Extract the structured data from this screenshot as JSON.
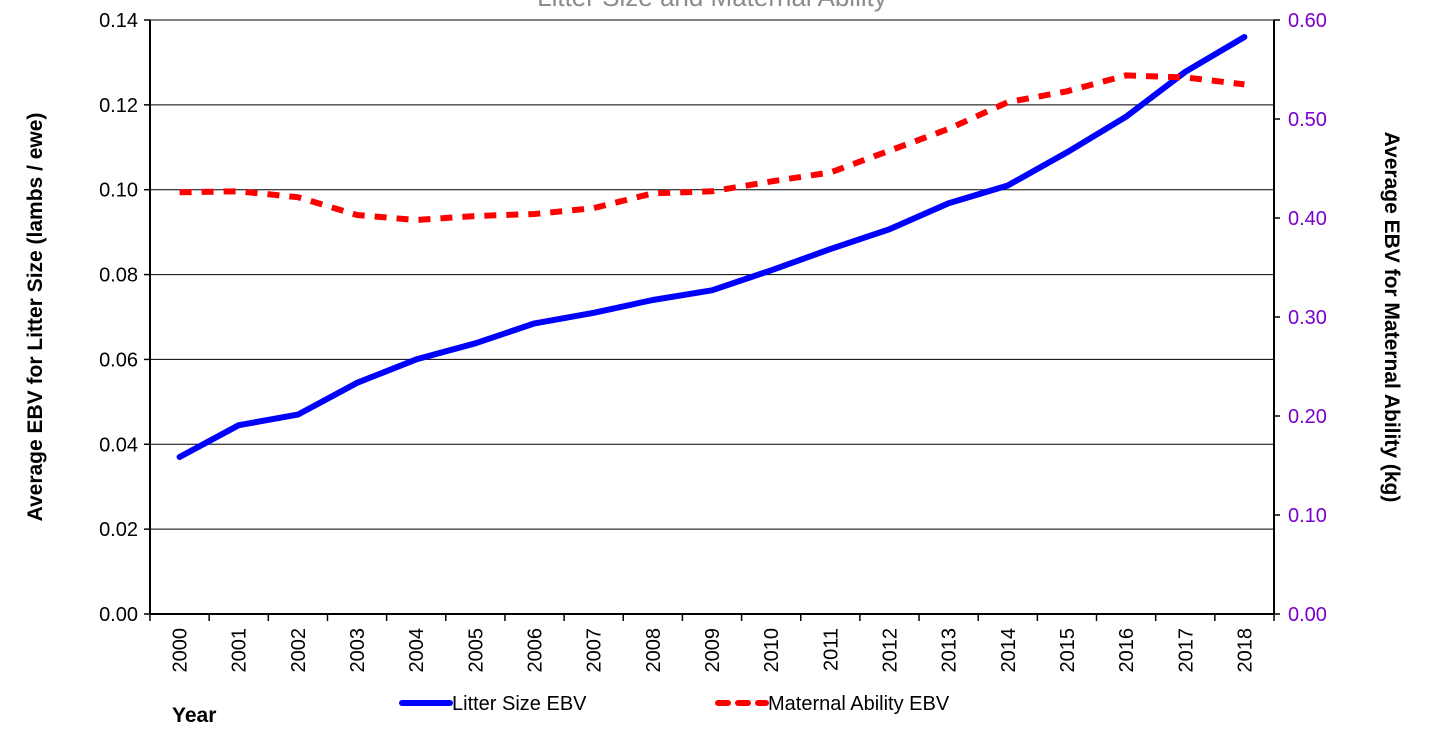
{
  "colors": {
    "litter_line": "#0000ff",
    "maternal_line": "#ff0000",
    "right_axis_text": "#7a00cc",
    "title_text": "#8c8c8c",
    "gridline": "#000000"
  },
  "chart_data": {
    "type": "line",
    "title": "Litter Size and Maternal Ability",
    "xlabel": "Year",
    "ylabel_left": "Average EBV for Litter Size (lambs / ewe)",
    "ylabel_right": "Average EBV for Maternal Ability (kg)",
    "categories": [
      "2000",
      "2001",
      "2002",
      "2003",
      "2004",
      "2005",
      "2006",
      "2007",
      "2008",
      "2009",
      "2010",
      "2011",
      "2012",
      "2013",
      "2014",
      "2015",
      "2016",
      "2017",
      "2018"
    ],
    "ylim_left": [
      0,
      0.14
    ],
    "ylim_right": [
      0,
      0.6
    ],
    "yticks_left": [
      "0.00",
      "0.02",
      "0.04",
      "0.06",
      "0.08",
      "0.10",
      "0.12",
      "0.14"
    ],
    "yticks_right": [
      "0.00",
      "0.10",
      "0.20",
      "0.30",
      "0.40",
      "0.50",
      "0.60"
    ],
    "grid": true,
    "legend_position": "bottom",
    "series": [
      {
        "name": "Litter Size EBV",
        "axis": "left",
        "style": "solid",
        "values": [
          0.037,
          0.0445,
          0.047,
          0.0545,
          0.06,
          0.0638,
          0.0685,
          0.071,
          0.074,
          0.0763,
          0.081,
          0.086,
          0.0907,
          0.0968,
          0.101,
          0.1088,
          0.1172,
          0.1278,
          0.136
        ]
      },
      {
        "name": "Maternal Ability EBV",
        "axis": "right",
        "style": "dashed",
        "values": [
          0.426,
          0.427,
          0.421,
          0.403,
          0.398,
          0.402,
          0.404,
          0.41,
          0.425,
          0.427,
          0.437,
          0.446,
          0.468,
          0.49,
          0.517,
          0.528,
          0.544,
          0.542,
          0.535
        ]
      }
    ]
  }
}
